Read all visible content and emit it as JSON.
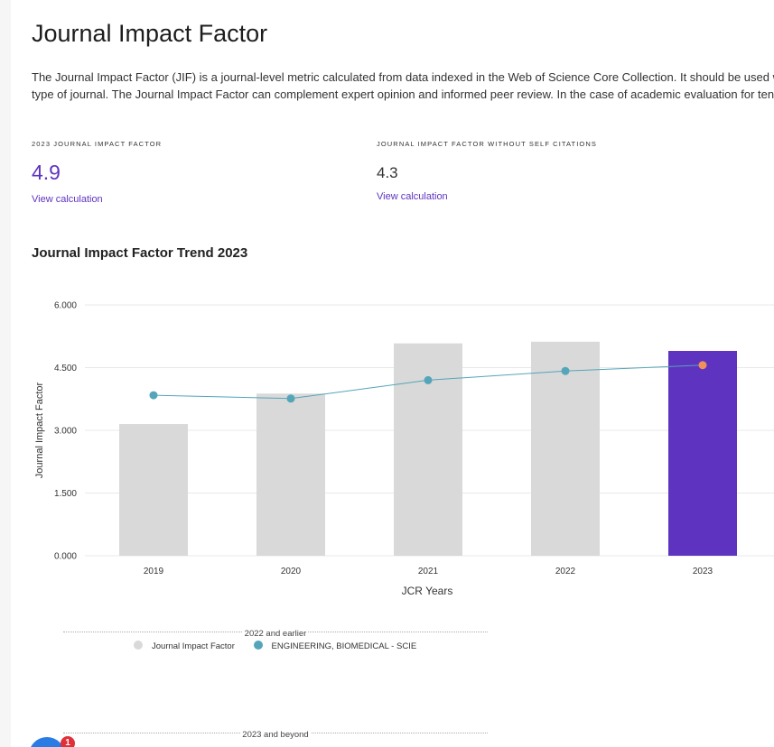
{
  "page": {
    "title": "Journal Impact Factor",
    "description_line1": "The Journal Impact Factor (JIF) is a journal-level metric calculated from data indexed in the Web of Science Core Collection. It should be used with care",
    "description_line2": "type of journal. The Journal Impact Factor can complement expert opinion and informed peer review. In the case of academic evaluation for tenure, it i"
  },
  "metrics": {
    "jif": {
      "label": "2023 JOURNAL IMPACT FACTOR",
      "value": "4.9",
      "link": "View calculation"
    },
    "jif_no_self": {
      "label": "JOURNAL IMPACT FACTOR WITHOUT SELF CITATIONS",
      "value": "4.3",
      "link": "View calculation"
    }
  },
  "trend": {
    "title": "Journal Impact Factor Trend 2023"
  },
  "chart_data": {
    "type": "bar",
    "categories": [
      "2019",
      "2020",
      "2021",
      "2022",
      "2023"
    ],
    "series": [
      {
        "name": "Journal Impact Factor",
        "kind": "bar",
        "values": [
          3.15,
          3.88,
          5.08,
          5.12,
          4.9
        ]
      },
      {
        "name": "ENGINEERING, BIOMEDICAL - SCIE",
        "kind": "line",
        "values": [
          3.84,
          3.76,
          4.2,
          4.42,
          4.56
        ]
      }
    ],
    "xlabel": "JCR Years",
    "ylabel": "Journal Impact Factor",
    "ylim": [
      0,
      6
    ],
    "yticks": [
      "0.000",
      "1.500",
      "3.000",
      "4.500",
      "6.000"
    ],
    "ytick_values": [
      0,
      1.5,
      3,
      4.5,
      6
    ],
    "grid": true
  },
  "legend": {
    "group1": "2022 and earlier",
    "group2": "2023 and beyond",
    "item_bar": "Journal Impact Factor",
    "item_line": "ENGINEERING, BIOMEDICAL - SCIE"
  },
  "notification": {
    "count": "1"
  },
  "colors": {
    "bar_past": "#d9d9d9",
    "bar_current": "#5e33bf",
    "line": "#54a5b9",
    "point_current": "#f0905a",
    "grid": "#e8e8e8",
    "accent": "#5e33bf"
  }
}
